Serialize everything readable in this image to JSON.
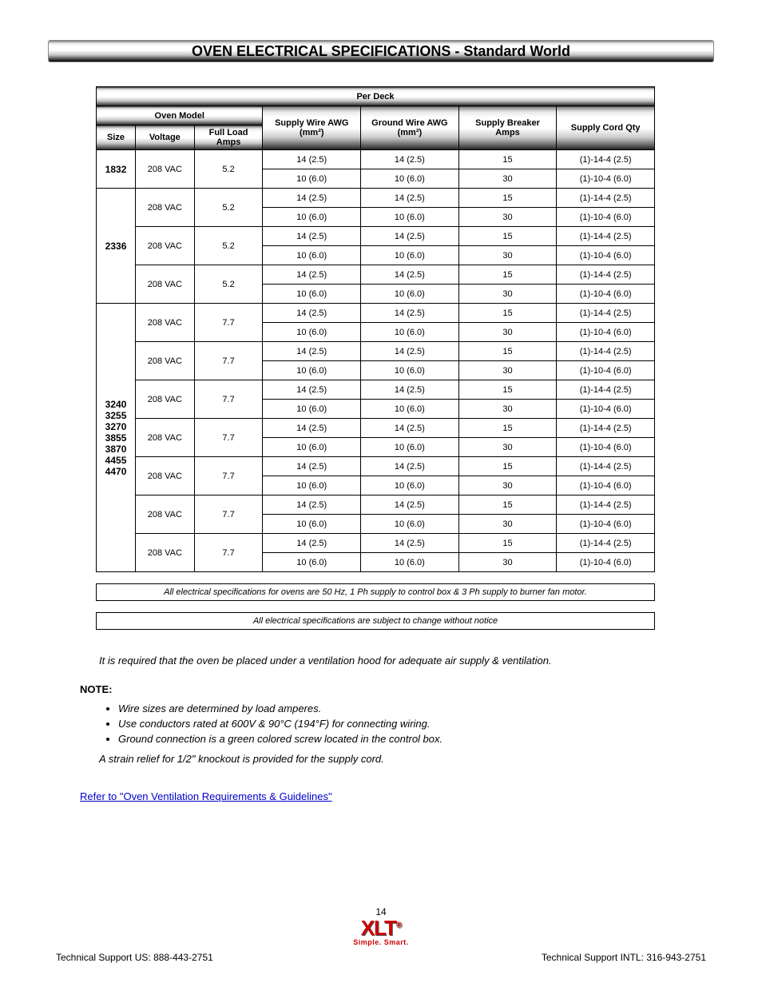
{
  "title": "OVEN ELECTRICAL SPECIFICATIONS - Standard World",
  "table_header_top": "Per Deck",
  "col_group": "Oven Model",
  "col_sub": [
    "Size",
    "Voltage",
    "Full Load Amps"
  ],
  "col_right": [
    "Supply Wire AWG (mm²)",
    "Ground Wire AWG (mm²)",
    "Supply Breaker Amps",
    "Supply Cord Qty"
  ],
  "rows": [
    {
      "model": "1832",
      "voltage": "208 VAC",
      "groups": [
        {
          "fla": "5.2",
          "cells": [
            [
              "14 (2.5)",
              "14 (2.5)",
              "15",
              "(1)-14-4 (2.5)"
            ],
            [
              "10 (6.0)",
              "10 (6.0)",
              "30",
              "(1)-10-4 (6.0)"
            ]
          ]
        }
      ]
    },
    {
      "model": "2336",
      "voltage": "208 VAC",
      "groups": [
        {
          "fla": "5.2",
          "cells": [
            [
              "14 (2.5)",
              "14 (2.5)",
              "15",
              "(1)-14-4 (2.5)"
            ],
            [
              "10 (6.0)",
              "10 (6.0)",
              "30",
              "(1)-10-4 (6.0)"
            ]
          ]
        },
        {
          "fla": "5.2",
          "cells": [
            [
              "14 (2.5)",
              "14 (2.5)",
              "15",
              "(1)-14-4 (2.5)"
            ],
            [
              "10 (6.0)",
              "10 (6.0)",
              "30",
              "(1)-10-4 (6.0)"
            ]
          ]
        },
        {
          "fla": "5.2",
          "cells": [
            [
              "14 (2.5)",
              "14 (2.5)",
              "15",
              "(1)-14-4 (2.5)"
            ],
            [
              "10 (6.0)",
              "10 (6.0)",
              "30",
              "(1)-10-4 (6.0)"
            ]
          ]
        }
      ]
    },
    {
      "model": "3240 3255 3270 3855 3870 4455 4470",
      "voltage": "208 VAC",
      "groups": [
        {
          "fla": "7.7",
          "cells": [
            [
              "14 (2.5)",
              "14 (2.5)",
              "15",
              "(1)-14-4 (2.5)"
            ],
            [
              "10 (6.0)",
              "10 (6.0)",
              "30",
              "(1)-10-4 (6.0)"
            ]
          ]
        },
        {
          "fla": "7.7",
          "cells": [
            [
              "14 (2.5)",
              "14 (2.5)",
              "15",
              "(1)-14-4 (2.5)"
            ],
            [
              "10 (6.0)",
              "10 (6.0)",
              "30",
              "(1)-10-4 (6.0)"
            ]
          ]
        },
        {
          "fla": "7.7",
          "cells": [
            [
              "14 (2.5)",
              "14 (2.5)",
              "15",
              "(1)-14-4 (2.5)"
            ],
            [
              "10 (6.0)",
              "10 (6.0)",
              "30",
              "(1)-10-4 (6.0)"
            ]
          ]
        },
        {
          "fla": "7.7",
          "cells": [
            [
              "14 (2.5)",
              "14 (2.5)",
              "15",
              "(1)-14-4 (2.5)"
            ],
            [
              "10 (6.0)",
              "10 (6.0)",
              "30",
              "(1)-10-4 (6.0)"
            ]
          ]
        },
        {
          "fla": "7.7",
          "cells": [
            [
              "14 (2.5)",
              "14 (2.5)",
              "15",
              "(1)-14-4 (2.5)"
            ],
            [
              "10 (6.0)",
              "10 (6.0)",
              "30",
              "(1)-10-4 (6.0)"
            ]
          ]
        },
        {
          "fla": "7.7",
          "cells": [
            [
              "14 (2.5)",
              "14 (2.5)",
              "15",
              "(1)-14-4 (2.5)"
            ],
            [
              "10 (6.0)",
              "10 (6.0)",
              "30",
              "(1)-10-4 (6.0)"
            ]
          ]
        },
        {
          "fla": "7.7",
          "cells": [
            [
              "14 (2.5)",
              "14 (2.5)",
              "15",
              "(1)-14-4 (2.5)"
            ],
            [
              "10 (6.0)",
              "10 (6.0)",
              "30",
              "(1)-10-4 (6.0)"
            ]
          ]
        }
      ]
    }
  ],
  "note1": "All electrical specifications for ovens are 50 Hz, 1 Ph supply to control box & 3 Ph supply to burner fan motor.",
  "note2": "All electrical specifications are subject to change without notice",
  "para1": "It is required that the oven be placed under a ventilation hood for adequate air supply & ventilation.",
  "para2": "NOTE:",
  "bullets": [
    "Wire sizes are determined by load amperes.",
    "Use conductors rated at 600V & 90°C (194°F) for connecting wiring.",
    "Ground connection is a green colored screw located in the control box."
  ],
  "para3": "A strain relief for 1/2\" knockout is provided for the supply cord.",
  "link_text": "Refer to \"Oven Ventilation Requirements & Guidelines\"",
  "footer_page": "14",
  "footer_left": "Technical Support US:   888-443-2751",
  "footer_right": "Technical Support INTL:   316-943-2751",
  "logo_tag": "Simple. Smart."
}
